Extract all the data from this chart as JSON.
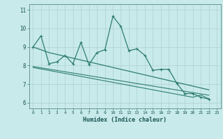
{
  "x": [
    0,
    1,
    2,
    3,
    4,
    5,
    6,
    7,
    8,
    9,
    10,
    11,
    12,
    13,
    14,
    15,
    16,
    17,
    18,
    19,
    20,
    21,
    22,
    23
  ],
  "line1_y": [
    9.0,
    9.6,
    8.1,
    8.2,
    8.55,
    8.1,
    9.25,
    8.05,
    8.7,
    8.85,
    10.65,
    10.1,
    8.8,
    8.9,
    8.55,
    7.75,
    7.8,
    7.8,
    7.05,
    6.5,
    6.5,
    6.3,
    6.2,
    null
  ],
  "line2_y": [
    9.0,
    8.85,
    8.7,
    8.6,
    8.5,
    8.4,
    8.3,
    8.2,
    8.1,
    8.0,
    7.9,
    7.8,
    7.7,
    7.6,
    7.5,
    7.4,
    7.3,
    7.2,
    7.1,
    7.0,
    6.9,
    6.8,
    6.7,
    null
  ],
  "line3_y": [
    7.95,
    7.88,
    7.81,
    7.74,
    7.67,
    7.6,
    7.53,
    7.46,
    7.39,
    7.32,
    7.25,
    7.18,
    7.11,
    7.04,
    6.97,
    6.9,
    6.83,
    6.76,
    6.69,
    6.62,
    6.55,
    6.48,
    6.41,
    null
  ],
  "line4_y": [
    7.9,
    7.82,
    7.74,
    7.66,
    7.58,
    7.5,
    7.42,
    7.34,
    7.26,
    7.18,
    7.1,
    7.02,
    6.94,
    6.86,
    6.78,
    6.7,
    6.62,
    6.54,
    6.46,
    6.38,
    6.3,
    6.42,
    6.22,
    null
  ],
  "color": "#2e7d6e",
  "bg_color": "#c8eaea",
  "grid_color": "#b0d0d0",
  "xlabel": "Humidex (Indice chaleur)",
  "ylabel_ticks": [
    6,
    7,
    8,
    9,
    10,
    11
  ],
  "xlim": [
    -0.5,
    23.5
  ],
  "ylim": [
    5.7,
    11.3
  ]
}
